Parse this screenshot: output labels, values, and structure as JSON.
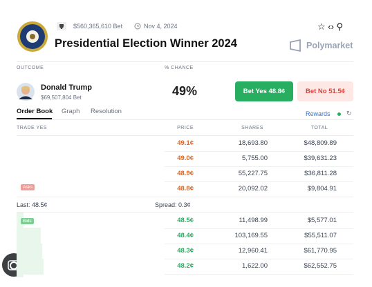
{
  "header": {
    "volume": "$560,365,610 Bet",
    "date": "Nov 4, 2024",
    "title": "Presidential Election Winner 2024",
    "brand": "Polymarket"
  },
  "outcome_header": {
    "outcome": "OUTCOME",
    "chance": "% CHANCE"
  },
  "outcome": {
    "name": "Donald Trump",
    "volume": "$69,507,804 Bet",
    "chance": "49%",
    "bet_yes": "Bet Yes 48.8¢",
    "bet_no": "Bet No 51.5¢"
  },
  "tabs": [
    "Order Book",
    "Graph",
    "Resolution"
  ],
  "rewards": "Rewards",
  "book": {
    "columns": [
      "TRADE YES",
      "PRICE",
      "SHARES",
      "TOTAL"
    ],
    "asks_label": "Asks",
    "asks": [
      [
        "49.1¢",
        "18,693.80",
        "$48,809.89"
      ],
      [
        "49.0¢",
        "5,755.00",
        "$39,631.23"
      ],
      [
        "48.9¢",
        "55,227.75",
        "$36,811.28"
      ],
      [
        "48.8¢",
        "20,092.02",
        "$9,804.91"
      ]
    ],
    "last": "Last: 48.5¢",
    "spread": "Spread: 0.3¢",
    "bids_label": "Bids",
    "bids": [
      [
        "48.5¢",
        "11,498.99",
        "$5,577.01"
      ],
      [
        "48.4¢",
        "103,169.55",
        "$55,511.07"
      ],
      [
        "48.3¢",
        "12,960.41",
        "$61,770.95"
      ],
      [
        "48.2¢",
        "1,622.00",
        "$62,552.75"
      ]
    ]
  }
}
